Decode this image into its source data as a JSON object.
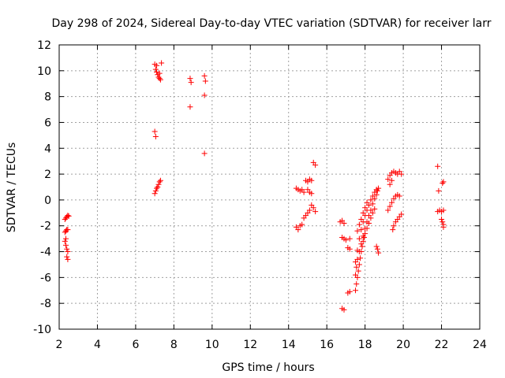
{
  "chart_data": {
    "type": "scatter",
    "title": "Day 298 of 2024, Sidereal Day-to-day VTEC variation (SDTVAR) for receiver larr",
    "xlabel": "GPS time / hours",
    "ylabel": "SDTVAR / TECUs",
    "xlim": [
      2,
      24
    ],
    "ylim": [
      -10,
      12
    ],
    "x_ticks": [
      2,
      4,
      6,
      8,
      10,
      12,
      14,
      16,
      18,
      20,
      22,
      24
    ],
    "y_ticks": [
      -10,
      -8,
      -6,
      -4,
      -2,
      0,
      2,
      4,
      6,
      8,
      10,
      12
    ],
    "grid": true,
    "marker": "plus",
    "color": "#ff0000",
    "series": [
      {
        "name": "SDTVAR",
        "points": [
          [
            2.3,
            -1.5
          ],
          [
            2.35,
            -1.4
          ],
          [
            2.4,
            -1.3
          ],
          [
            2.45,
            -1.2
          ],
          [
            2.5,
            -1.25
          ],
          [
            2.3,
            -2.5
          ],
          [
            2.35,
            -2.4
          ],
          [
            2.4,
            -2.3
          ],
          [
            2.45,
            -2.3
          ],
          [
            2.3,
            -3.2
          ],
          [
            2.35,
            -3.5
          ],
          [
            2.4,
            -3.8
          ],
          [
            2.45,
            -4.0
          ],
          [
            2.4,
            -4.4
          ],
          [
            2.45,
            -4.6
          ],
          [
            2.35,
            -3.0
          ],
          [
            7.0,
            10.5
          ],
          [
            7.05,
            10.1
          ],
          [
            7.1,
            9.9
          ],
          [
            7.15,
            9.7
          ],
          [
            7.2,
            9.5
          ],
          [
            7.25,
            9.4
          ],
          [
            7.3,
            9.3
          ],
          [
            7.35,
            10.6
          ],
          [
            7.1,
            10.4
          ],
          [
            7.25,
            9.8
          ],
          [
            7.0,
            5.3
          ],
          [
            7.05,
            4.9
          ],
          [
            7.0,
            0.5
          ],
          [
            7.05,
            0.7
          ],
          [
            7.1,
            0.9
          ],
          [
            7.15,
            1.0
          ],
          [
            7.2,
            1.2
          ],
          [
            7.25,
            1.4
          ],
          [
            7.3,
            1.5
          ],
          [
            8.85,
            9.4
          ],
          [
            8.9,
            9.1
          ],
          [
            8.85,
            7.2
          ],
          [
            9.6,
            9.6
          ],
          [
            9.65,
            9.2
          ],
          [
            9.6,
            8.1
          ],
          [
            9.6,
            3.6
          ],
          [
            14.4,
            0.9
          ],
          [
            14.5,
            0.8
          ],
          [
            14.6,
            0.7
          ],
          [
            14.7,
            0.8
          ],
          [
            14.8,
            0.6
          ],
          [
            15.0,
            0.8
          ],
          [
            15.1,
            0.6
          ],
          [
            15.2,
            0.5
          ],
          [
            14.4,
            -2.1
          ],
          [
            14.5,
            -2.3
          ],
          [
            14.6,
            -2.0
          ],
          [
            14.7,
            -1.9
          ],
          [
            14.8,
            -1.4
          ],
          [
            14.9,
            -1.2
          ],
          [
            15.0,
            -1.0
          ],
          [
            15.1,
            -0.8
          ],
          [
            14.9,
            1.5
          ],
          [
            15.0,
            1.4
          ],
          [
            15.1,
            1.6
          ],
          [
            15.2,
            1.5
          ],
          [
            15.3,
            2.9
          ],
          [
            15.4,
            2.7
          ],
          [
            15.2,
            -0.4
          ],
          [
            15.3,
            -0.6
          ],
          [
            15.4,
            -0.9
          ],
          [
            16.8,
            -8.4
          ],
          [
            16.9,
            -8.5
          ],
          [
            16.7,
            -1.7
          ],
          [
            16.8,
            -1.6
          ],
          [
            16.9,
            -1.8
          ],
          [
            16.8,
            -2.9
          ],
          [
            16.9,
            -3.0
          ],
          [
            17.0,
            -3.1
          ],
          [
            17.2,
            -3.0
          ],
          [
            17.1,
            -3.7
          ],
          [
            17.2,
            -3.8
          ],
          [
            17.1,
            -7.2
          ],
          [
            17.2,
            -7.1
          ],
          [
            17.5,
            -7.0
          ],
          [
            17.55,
            -6.5
          ],
          [
            17.6,
            -6.0
          ],
          [
            17.65,
            -5.5
          ],
          [
            17.7,
            -5.0
          ],
          [
            17.75,
            -4.5
          ],
          [
            17.8,
            -4.0
          ],
          [
            17.85,
            -3.6
          ],
          [
            17.9,
            -3.2
          ],
          [
            17.95,
            -2.9
          ],
          [
            18.0,
            -2.6
          ],
          [
            18.1,
            -2.2
          ],
          [
            18.2,
            -1.8
          ],
          [
            18.3,
            -1.4
          ],
          [
            18.4,
            -1.0
          ],
          [
            18.5,
            -0.7
          ],
          [
            17.5,
            -5.8
          ],
          [
            17.55,
            -5.2
          ],
          [
            17.6,
            -4.6
          ],
          [
            17.7,
            -4.0
          ],
          [
            17.8,
            -3.4
          ],
          [
            17.9,
            -2.8
          ],
          [
            18.0,
            -2.2
          ],
          [
            18.1,
            -1.7
          ],
          [
            18.2,
            -1.2
          ],
          [
            18.3,
            -0.8
          ],
          [
            18.4,
            -0.3
          ],
          [
            18.5,
            0.1
          ],
          [
            18.6,
            0.4
          ],
          [
            18.65,
            0.7
          ],
          [
            18.7,
            0.9
          ],
          [
            17.5,
            -4.8
          ],
          [
            17.6,
            -3.9
          ],
          [
            17.7,
            -3.0
          ],
          [
            17.8,
            -2.3
          ],
          [
            17.9,
            -1.7
          ],
          [
            18.0,
            -1.2
          ],
          [
            18.1,
            -0.8
          ],
          [
            18.2,
            -0.4
          ],
          [
            18.3,
            0.0
          ],
          [
            18.4,
            0.3
          ],
          [
            18.5,
            0.6
          ],
          [
            18.6,
            0.8
          ],
          [
            17.6,
            -2.4
          ],
          [
            17.7,
            -1.9
          ],
          [
            17.8,
            -1.5
          ],
          [
            17.9,
            -1.0
          ],
          [
            18.0,
            -0.6
          ],
          [
            18.1,
            -0.2
          ],
          [
            18.6,
            -3.6
          ],
          [
            18.65,
            -3.8
          ],
          [
            18.7,
            -4.1
          ],
          [
            19.2,
            -0.8
          ],
          [
            19.3,
            -0.5
          ],
          [
            19.4,
            -0.2
          ],
          [
            19.5,
            0.1
          ],
          [
            19.6,
            0.3
          ],
          [
            19.7,
            0.4
          ],
          [
            19.8,
            0.3
          ],
          [
            19.2,
            1.6
          ],
          [
            19.3,
            1.9
          ],
          [
            19.4,
            2.1
          ],
          [
            19.5,
            2.2
          ],
          [
            19.6,
            2.1
          ],
          [
            19.7,
            2.0
          ],
          [
            19.8,
            2.2
          ],
          [
            19.9,
            2.0
          ],
          [
            19.3,
            1.2
          ],
          [
            19.4,
            1.5
          ],
          [
            19.5,
            -2.0
          ],
          [
            19.6,
            -1.7
          ],
          [
            19.7,
            -1.5
          ],
          [
            19.8,
            -1.3
          ],
          [
            19.9,
            -1.1
          ],
          [
            19.45,
            -2.3
          ],
          [
            21.8,
            2.6
          ],
          [
            21.85,
            0.7
          ],
          [
            21.8,
            -0.9
          ],
          [
            21.9,
            -0.8
          ],
          [
            22.0,
            -0.9
          ],
          [
            22.1,
            -0.8
          ],
          [
            22.0,
            -1.5
          ],
          [
            22.05,
            -1.7
          ],
          [
            22.1,
            -1.9
          ],
          [
            22.1,
            -2.1
          ],
          [
            22.05,
            1.3
          ],
          [
            22.1,
            1.4
          ]
        ]
      }
    ]
  }
}
